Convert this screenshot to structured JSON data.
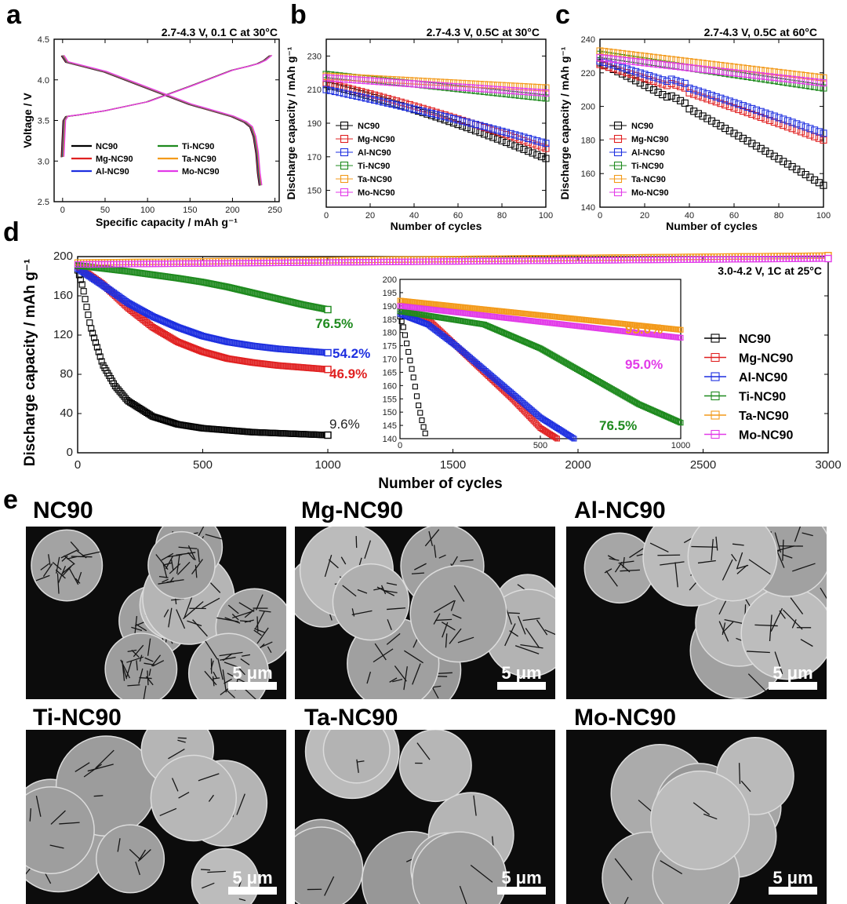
{
  "colors": {
    "NC90": "#000000",
    "Mg-NC90": "#e02020",
    "Al-NC90": "#1d2fe0",
    "Ti-NC90": "#1e8a1e",
    "Ta-NC90": "#f39a1a",
    "Mo-NC90": "#e23ae8"
  },
  "panel_labels": {
    "a": "a",
    "b": "b",
    "c": "c",
    "d": "d",
    "e": "e"
  },
  "chart_data": [
    {
      "id": "a",
      "type": "line",
      "title": "2.7-4.3 V, 0.1 C at 30°C",
      "xlabel": "Specific capacity / mAh g⁻¹",
      "ylabel": "Voltage / V",
      "xlim": [
        -10,
        255
      ],
      "ylim": [
        2.5,
        4.5
      ],
      "xticks": [
        0,
        50,
        100,
        150,
        200,
        250
      ],
      "yticks": [
        2.5,
        3.0,
        3.5,
        4.0,
        4.5
      ],
      "ytick_labels": [
        "2.5",
        "3.0",
        "3.5",
        "4.0",
        "4.5"
      ],
      "legend": [
        "NC90",
        "Ti-NC90",
        "Mg-NC90",
        "Ta-NC90",
        "Al-NC90",
        "Mo-NC90"
      ],
      "charge_curve": {
        "x": [
          0,
          2,
          5,
          20,
          50,
          100,
          150,
          200,
          220,
          230,
          238,
          245
        ],
        "y": [
          3.05,
          3.5,
          3.55,
          3.57,
          3.62,
          3.73,
          3.92,
          4.12,
          4.17,
          4.2,
          4.24,
          4.3
        ]
      },
      "discharge_curve": {
        "x": [
          0,
          5,
          20,
          50,
          100,
          150,
          200,
          215,
          222,
          226,
          229,
          231,
          233
        ],
        "y": [
          4.3,
          4.22,
          4.18,
          4.1,
          3.9,
          3.7,
          3.55,
          3.48,
          3.42,
          3.3,
          3.1,
          2.85,
          2.7
        ]
      }
    },
    {
      "id": "b",
      "type": "scatter",
      "title": "2.7-4.3 V, 0.5C at 30°C",
      "xlabel": "Number of cycles",
      "ylabel": "Discharge capacity / mAh g⁻¹",
      "xlim": [
        0,
        100
      ],
      "ylim": [
        140,
        240
      ],
      "xticks": [
        0,
        20,
        40,
        60,
        80,
        100
      ],
      "yticks": [
        150,
        170,
        190,
        210,
        230
      ],
      "series": [
        {
          "name": "NC90",
          "start": 213,
          "end": 169,
          "curv": 0.25
        },
        {
          "name": "Mg-NC90",
          "start": 214,
          "end": 175,
          "curv": 0.2
        },
        {
          "name": "Al-NC90",
          "start": 210,
          "end": 178,
          "curv": 0.15
        },
        {
          "name": "Ti-NC90",
          "start": 219,
          "end": 205,
          "curv": 0
        },
        {
          "name": "Ta-NC90",
          "start": 218,
          "end": 211,
          "curv": 0
        },
        {
          "name": "Mo-NC90",
          "start": 217,
          "end": 208,
          "curv": 0
        }
      ]
    },
    {
      "id": "c",
      "type": "scatter",
      "title": "2.7-4.3 V, 0.5C at 60°C",
      "xlabel": "Number of cycles",
      "ylabel": "Discharge capacity / mAh g⁻¹",
      "xlim": [
        0,
        100
      ],
      "ylim": [
        140,
        240
      ],
      "xticks": [
        0,
        20,
        40,
        60,
        80,
        100
      ],
      "yticks": [
        140,
        160,
        180,
        200,
        220,
        240
      ],
      "series": [
        {
          "name": "NC90",
          "start": 226,
          "end": 153,
          "curv": 0.1
        },
        {
          "name": "Mg-NC90",
          "start": 225,
          "end": 180,
          "curv": 0.1
        },
        {
          "name": "Al-NC90",
          "start": 227,
          "end": 184,
          "curv": 0.1
        },
        {
          "name": "Ti-NC90",
          "start": 231,
          "end": 211,
          "curv": 0
        },
        {
          "name": "Ta-NC90",
          "start": 233,
          "end": 217,
          "curv": 0
        },
        {
          "name": "Mo-NC90",
          "start": 229,
          "end": 214,
          "curv": 0
        }
      ]
    },
    {
      "id": "d",
      "type": "scatter",
      "title": "3.0-4.2 V, 1C  at 25°C",
      "xlabel": "Number of cycles",
      "ylabel": "Discharge capacity / mAh g⁻¹",
      "xlim": [
        0,
        3000
      ],
      "ylim": [
        0,
        200
      ],
      "xticks": [
        0,
        500,
        1000,
        1500,
        2000,
        2500,
        3000
      ],
      "yticks": [
        0,
        40,
        80,
        120,
        160,
        200
      ],
      "series": [
        {
          "name": "NC90",
          "x": [
            0,
            20,
            50,
            100,
            150,
            200,
            300,
            400,
            500,
            700,
            1000
          ],
          "y": [
            186,
            170,
            130,
            90,
            68,
            53,
            37,
            29,
            25,
            21,
            18
          ]
        },
        {
          "name": "Mg-NC90",
          "x": [
            0,
            100,
            200,
            300,
            400,
            500,
            600,
            700,
            800,
            900,
            1000
          ],
          "y": [
            190,
            172,
            148,
            128,
            113,
            103,
            96,
            92,
            89,
            87,
            85
          ]
        },
        {
          "name": "Al-NC90",
          "x": [
            0,
            100,
            200,
            300,
            400,
            500,
            600,
            700,
            800,
            900,
            1000
          ],
          "y": [
            188,
            171,
            153,
            139,
            128,
            119,
            113,
            109,
            106,
            104,
            102
          ]
        },
        {
          "name": "Ti-NC90",
          "x": [
            0,
            200,
            400,
            500,
            600,
            700,
            800,
            900,
            1000
          ],
          "y": [
            191,
            185,
            178,
            174,
            169,
            163,
            157,
            151,
            146
          ]
        },
        {
          "name": "Ta-NC90",
          "x": [
            0,
            3000
          ],
          "y": [
            194,
            201
          ]
        },
        {
          "name": "Mo-NC90",
          "x": [
            0,
            3000
          ],
          "y": [
            192,
            198
          ]
        }
      ],
      "annotations": [
        {
          "text": "76.5%",
          "series": "Ti-NC90"
        },
        {
          "text": "54.2%",
          "series": "Al-NC90"
        },
        {
          "text": "46.9%",
          "series": "Mg-NC90"
        },
        {
          "text": "9.6%",
          "series": "NC90"
        }
      ],
      "legend": [
        "NC90",
        "Mg-NC90",
        "Al-NC90",
        "Ti-NC90",
        "Ta-NC90",
        "Mo-NC90"
      ],
      "inset": {
        "xlim": [
          0,
          1000
        ],
        "ylim": [
          140,
          200
        ],
        "xticks": [
          0,
          500,
          1000
        ],
        "yticks": [
          140,
          145,
          150,
          155,
          160,
          165,
          170,
          175,
          180,
          185,
          190,
          195,
          200
        ],
        "series": [
          {
            "name": "NC90",
            "x": [
              0,
              10,
              20,
              35,
              50,
              65,
              80,
              95
            ],
            "y": [
              186,
              183,
              178,
              170,
              162,
              153,
              146,
              140
            ]
          },
          {
            "name": "Mg-NC90",
            "x": [
              0,
              100,
              200,
              300,
              400,
              500,
              560
            ],
            "y": [
              188,
              185,
              175,
              165,
              155,
              144,
              140
            ]
          },
          {
            "name": "Al-NC90",
            "x": [
              0,
              100,
              200,
              300,
              400,
              500,
              620
            ],
            "y": [
              187,
              183,
              175,
              166,
              157,
              148,
              140
            ]
          },
          {
            "name": "Ti-NC90",
            "x": [
              0,
              300,
              500,
              700,
              850,
              1000
            ],
            "y": [
              188,
              183,
              174,
              162,
              153,
              146
            ]
          },
          {
            "name": "Ta-NC90",
            "x": [
              0,
              1000
            ],
            "y": [
              192,
              181
            ]
          },
          {
            "name": "Mo-NC90",
            "x": [
              0,
              1000
            ],
            "y": [
              190,
              178
            ]
          }
        ],
        "annotations": [
          {
            "text": "95.0%",
            "series": "Ta-NC90"
          },
          {
            "text": "95.0%",
            "series": "Mo-NC90"
          },
          {
            "text": "76.5%",
            "series": "Ti-NC90"
          }
        ]
      }
    }
  ],
  "sem_panel": {
    "scale_bar_label": "5 μm",
    "images": [
      {
        "title": "NC90",
        "crack_level": "severe"
      },
      {
        "title": "Mg-NC90",
        "crack_level": "moderate"
      },
      {
        "title": "Al-NC90",
        "crack_level": "moderate"
      },
      {
        "title": "Ti-NC90",
        "crack_level": "minor"
      },
      {
        "title": "Ta-NC90",
        "crack_level": "minimal"
      },
      {
        "title": "Mo-NC90",
        "crack_level": "minimal"
      }
    ]
  }
}
